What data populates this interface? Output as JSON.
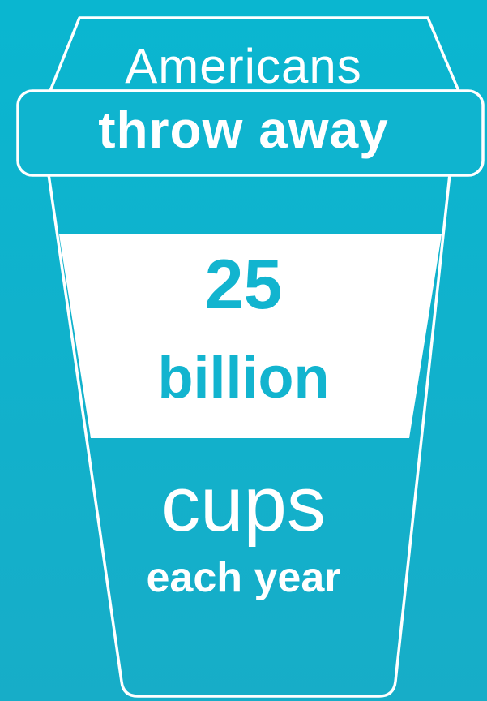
{
  "colors": {
    "background_top": "#0ab6d0",
    "background_bottom": "#17adc8",
    "outline": "#ffffff",
    "band": "#ffffff",
    "number_text": "#12b4cf",
    "text": "#ffffff"
  },
  "lid": {
    "line1": "Americans",
    "line2": "throw away"
  },
  "band": {
    "number": "25",
    "unit": "billion"
  },
  "bottom": {
    "line1": "cups",
    "line2": "each year"
  }
}
